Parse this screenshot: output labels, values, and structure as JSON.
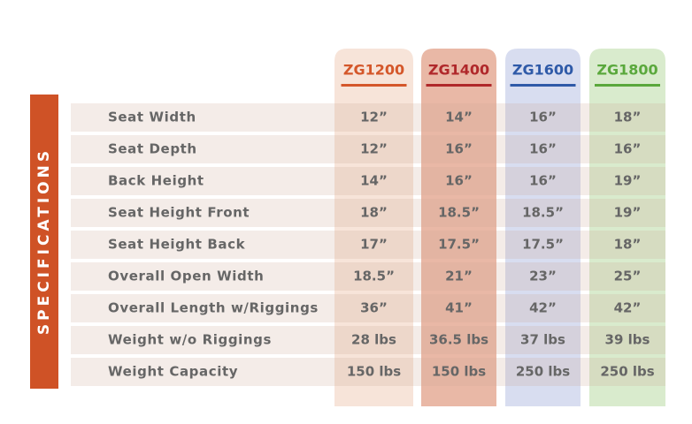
{
  "side_label": "SPECIFICATIONS",
  "columns": [
    "ZG1200",
    "ZG1400",
    "ZG1600",
    "ZG1800"
  ],
  "rows": [
    {
      "label": "Seat Width",
      "values": [
        "12”",
        "14”",
        "16”",
        "18”"
      ]
    },
    {
      "label": "Seat Depth",
      "values": [
        "12”",
        "16”",
        "16”",
        "16”"
      ]
    },
    {
      "label": "Back Height",
      "values": [
        "14”",
        "16”",
        "16”",
        "19”"
      ]
    },
    {
      "label": "Seat Height Front",
      "values": [
        "18”",
        "18.5”",
        "18.5”",
        "19”"
      ]
    },
    {
      "label": "Seat Height Back",
      "values": [
        "17”",
        "17.5”",
        "17.5”",
        "18”"
      ]
    },
    {
      "label": "Overall Open Width",
      "values": [
        "18.5”",
        "21”",
        "23”",
        "25”"
      ]
    },
    {
      "label": "Overall Length w/Riggings",
      "values": [
        "36”",
        "41”",
        "42”",
        "42”"
      ]
    },
    {
      "label": "Weight w/o Riggings",
      "values": [
        "28 lbs",
        "36.5 lbs",
        "37 lbs",
        "39 lbs"
      ]
    },
    {
      "label": "Weight Capacity",
      "values": [
        "150 lbs",
        "150 lbs",
        "250 lbs",
        "250 lbs"
      ]
    }
  ]
}
